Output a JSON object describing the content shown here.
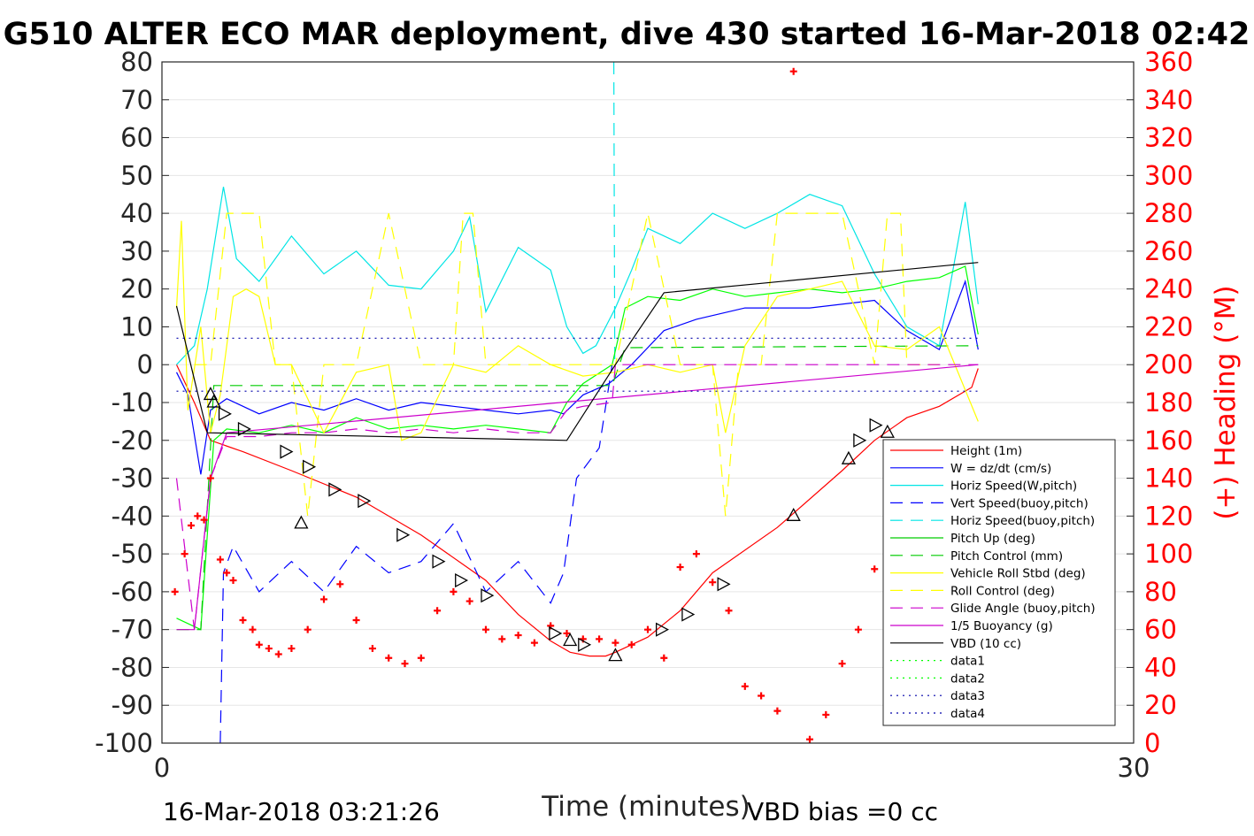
{
  "title": "G510 ALTER ECO MAR deployment, dive 430 started 16-Mar-2018 02:42",
  "footer": {
    "timestamp": "16-Mar-2018 03:21:26",
    "vbd_bias": "VBD bias =0 cc"
  },
  "chart_data": {
    "type": "line",
    "xlabel": "Time (minutes)",
    "ylabel_right": "(+) Heading (°M)",
    "xlim": [
      0,
      30
    ],
    "ylim": [
      -100,
      80
    ],
    "ylim_right": [
      0,
      360
    ],
    "x_ticks": [
      "0",
      "30"
    ],
    "y_ticks": [
      "80",
      "70",
      "60",
      "50",
      "40",
      "30",
      "20",
      "10",
      "0",
      "-10",
      "-20",
      "-30",
      "-40",
      "-50",
      "-60",
      "-70",
      "-80",
      "-90",
      "-100"
    ],
    "y_right_ticks": [
      "360",
      "340",
      "320",
      "300",
      "280",
      "260",
      "240",
      "220",
      "200",
      "180",
      "160",
      "140",
      "120",
      "100",
      "80",
      "60",
      "40",
      "20",
      "0"
    ],
    "grid": true,
    "legend_position": "bottom-right",
    "series": [
      {
        "name": "Height (1m)",
        "color": "#ff0000",
        "style": "solid",
        "x": [
          0.45,
          1.0,
          1.5,
          2.5,
          4.0,
          6.0,
          8.0,
          10.0,
          11.0,
          12.0,
          12.6,
          13.2,
          13.7,
          14.0,
          15.0,
          16.0,
          17.0,
          19.0,
          21.0,
          22.0,
          23.0,
          24.0,
          25.0,
          25.2
        ],
        "y": [
          0,
          -10,
          -20,
          -23,
          -28,
          -35,
          -45,
          -57,
          -66,
          -73,
          -76,
          -77,
          -77,
          -76,
          -72,
          -65,
          -55,
          -43,
          -28,
          -20,
          -14,
          -11,
          -6,
          -1
        ]
      },
      {
        "name": "W = dz/dt (cm/s)",
        "color": "#0000ff",
        "style": "solid",
        "x": [
          0.45,
          0.8,
          1.2,
          1.5,
          2.0,
          3.0,
          4.0,
          5.0,
          6.0,
          7.0,
          8.0,
          9.0,
          10.0,
          11.0,
          12.0,
          12.4,
          13.0,
          13.8,
          14.5,
          15.5,
          16.5,
          18.0,
          20.0,
          22.0,
          23.0,
          24.0,
          24.8,
          25.2
        ],
        "y": [
          -2,
          -8,
          -29,
          -12,
          -9,
          -13,
          -10,
          -12,
          -9,
          -12,
          -10,
          -11,
          -12,
          -13,
          -12,
          -13,
          -8,
          -5,
          0,
          9,
          12,
          15,
          15,
          17,
          9,
          4,
          22,
          4
        ]
      },
      {
        "name": "Horiz Speed(W,pitch)",
        "color": "#00e5e5",
        "style": "solid",
        "x": [
          0.45,
          1.0,
          1.4,
          1.9,
          2.3,
          3.0,
          4.0,
          5.0,
          6.0,
          7.0,
          8.0,
          9.0,
          9.5,
          10.0,
          11.0,
          12.0,
          12.5,
          13.0,
          13.4,
          14.0,
          14.5,
          15.0,
          16.0,
          17.0,
          18.0,
          19.0,
          20.0,
          21.0,
          22.0,
          23.0,
          24.0,
          24.8,
          25.2
        ],
        "y": [
          0,
          5,
          20,
          47,
          28,
          22,
          34,
          24,
          30,
          21,
          20,
          30,
          39,
          14,
          31,
          25,
          10,
          3,
          5,
          15,
          25,
          36,
          32,
          40,
          36,
          40,
          45,
          42,
          24,
          10,
          5,
          43,
          16
        ]
      },
      {
        "name": "Vert Speed(buoy,pitch)",
        "color": "#0000ff",
        "style": "dash",
        "x": [
          1.8,
          1.9,
          2.2,
          3.0,
          4.0,
          5.0,
          6.0,
          7.0,
          8.0,
          9.0,
          10.0,
          11.0,
          12.0,
          12.4,
          12.8,
          13.5,
          13.9
        ],
        "y": [
          -100,
          -55,
          -48,
          -60,
          -52,
          -60,
          -48,
          -55,
          -52,
          -42,
          -60,
          -52,
          -63,
          -55,
          -30,
          -22,
          0
        ]
      },
      {
        "name": "Horiz Speed(buoy,pitch)",
        "color": "#00e5e5",
        "style": "dash",
        "x": [
          13.95,
          13.98,
          14.02
        ],
        "y": [
          80,
          0,
          0
        ]
      },
      {
        "name": "Pitch Up (deg)",
        "color": "#00ff00",
        "style": "solid",
        "x": [
          0.45,
          1.2,
          1.6,
          2.0,
          3.0,
          4.0,
          5.0,
          6.0,
          7.0,
          8.0,
          9.0,
          10.0,
          11.0,
          12.0,
          12.5,
          13.0,
          13.9,
          14.3,
          15.0,
          16.0,
          17.0,
          18.0,
          19.0,
          20.0,
          21.0,
          22.0,
          23.0,
          24.0,
          24.8,
          25.2
        ],
        "y": [
          -67,
          -70,
          -20,
          -17,
          -18,
          -16,
          -18,
          -14,
          -17,
          -16,
          -17,
          -16,
          -17,
          -18,
          -10,
          -5,
          0,
          15,
          18,
          17,
          20,
          18,
          19,
          20,
          19,
          20,
          22,
          23,
          26,
          8
        ]
      },
      {
        "name": "Pitch Control (mm)",
        "color": "#00cc00",
        "style": "dash",
        "x": [
          0.45,
          1.2,
          1.6,
          12.5,
          13.9,
          14.3,
          25.2
        ],
        "y": [
          -70,
          -70,
          -5.5,
          -5.5,
          -5.5,
          4.5,
          5
        ]
      },
      {
        "name": "Vehicle Roll Stbd (deg)",
        "color": "#ffff00",
        "style": "solid",
        "x": [
          0.45,
          0.6,
          0.8,
          1.2,
          1.5,
          1.8,
          2.2,
          2.6,
          3.0,
          3.5,
          4.0,
          5.0,
          6.0,
          7.0,
          7.4,
          8.0,
          9.0,
          10.0,
          11.0,
          12.0,
          13.0,
          14.0,
          15.0,
          16.0,
          17.0,
          17.4,
          18.0,
          19.0,
          20.0,
          21.0,
          22.0,
          23.0,
          24.0,
          25.2
        ],
        "y": [
          15,
          38,
          -12,
          10,
          -18,
          -8,
          18,
          20,
          18,
          0,
          0,
          -18,
          -2,
          0,
          -20,
          -18,
          0,
          -2,
          5,
          0,
          -3,
          -2,
          0,
          -2,
          0,
          -18,
          5,
          18,
          20,
          22,
          5,
          4,
          10,
          -15
        ]
      },
      {
        "name": "Roll Control (deg)",
        "color": "#ffff00",
        "style": "dash",
        "x": [
          1.0,
          1.5,
          2.0,
          2.5,
          3.0,
          3.5,
          4.0,
          4.5,
          5.0,
          6.0,
          7.0,
          8.0,
          9.0,
          9.3,
          9.6,
          10.0,
          11.0,
          12.0,
          14.0,
          15.0,
          16.0,
          17.0,
          17.4,
          17.8,
          18.5,
          19.0,
          20.0,
          21.0,
          22.0,
          22.4,
          22.8,
          23.0,
          24.0
        ],
        "y": [
          0,
          0,
          40,
          40,
          40,
          0,
          0,
          -40,
          0,
          0,
          40,
          0,
          0,
          40,
          40,
          0,
          0,
          0,
          0,
          40,
          0,
          0,
          -40,
          0,
          0,
          40,
          40,
          40,
          0,
          40,
          40,
          0,
          0
        ]
      },
      {
        "name": "Glide Angle (buoy,pitch)",
        "color": "#cc00cc",
        "style": "dash",
        "x": [
          0.45,
          1.0,
          1.5,
          2.0,
          3.0,
          4.0,
          5.0,
          6.0,
          7.0,
          8.0,
          9.0,
          10.0,
          11.0,
          12.0,
          12.5,
          13.0,
          13.9,
          14.0,
          25.2
        ],
        "y": [
          -30,
          -70,
          -30,
          -19,
          -19,
          -18,
          -18,
          -17,
          -18,
          -17,
          -18,
          -17,
          -18,
          -18,
          -12,
          -11,
          -10,
          0,
          0
        ]
      },
      {
        "name": "1/5 Buoyancy (g)",
        "color": "#cc00cc",
        "style": "solid",
        "x": [
          0.45,
          1.0,
          1.5,
          2.0,
          25.2
        ],
        "y": [
          -70,
          -70,
          -30,
          -18,
          0
        ]
      },
      {
        "name": "VBD (10 cc)",
        "color": "#000000",
        "style": "solid",
        "x": [
          0.45,
          1.4,
          12.5,
          14.0,
          15.5,
          25.2
        ],
        "y": [
          15.5,
          -18,
          -20,
          0,
          19,
          27
        ]
      },
      {
        "name": "data1",
        "color": "#00ff00",
        "style": "dot",
        "x": [],
        "y": []
      },
      {
        "name": "data2",
        "color": "#00ff00",
        "style": "dot",
        "x": [],
        "y": []
      },
      {
        "name": "data3",
        "color": "#0000aa",
        "style": "dot",
        "x": [
          0.45,
          25.2
        ],
        "y": [
          7,
          7
        ]
      },
      {
        "name": "data4",
        "color": "#0000aa",
        "style": "dot",
        "x": [
          0.45,
          25.2
        ],
        "y": [
          -7,
          -7
        ]
      }
    ],
    "heading_series": {
      "color": "#ff0000",
      "marker": "+",
      "axis": "right",
      "x": [
        0.4,
        0.7,
        0.9,
        1.1,
        1.3,
        1.5,
        1.8,
        2.0,
        2.2,
        2.5,
        2.8,
        3.0,
        3.3,
        3.6,
        4.0,
        4.5,
        5.0,
        5.5,
        6.0,
        6.5,
        7.0,
        7.5,
        8.0,
        8.5,
        9.0,
        9.5,
        10.0,
        10.5,
        11.0,
        11.5,
        12.0,
        12.5,
        13.0,
        13.5,
        14.0,
        14.5,
        15.0,
        15.5,
        16.0,
        16.5,
        17.0,
        17.5,
        18.0,
        18.5,
        19.0,
        19.5,
        20.0,
        20.5,
        21.0,
        21.5,
        22.0,
        22.5,
        23.0
      ],
      "y": [
        80,
        100,
        115,
        120,
        118,
        140,
        97,
        90,
        86,
        65,
        60,
        52,
        50,
        47,
        50,
        60,
        76,
        84,
        65,
        50,
        45,
        42,
        45,
        70,
        80,
        75,
        60,
        55,
        57,
        53,
        62,
        58,
        55,
        55,
        53,
        52,
        60,
        45,
        93,
        100,
        85,
        70,
        30,
        25,
        17,
        355,
        2,
        15,
        42,
        60,
        92,
        55,
        35
      ]
    },
    "markers": {
      "up_triangles": {
        "x": [
          1.5,
          1.6,
          4.3,
          12.6,
          14.0,
          19.5,
          21.2,
          22.4
        ],
        "y": [
          -8,
          -10,
          -42,
          -73,
          -77,
          -40,
          -25,
          -18
        ]
      },
      "right_triangles": {
        "x": [
          1.9,
          2.5,
          3.8,
          4.5,
          5.3,
          6.2,
          7.4,
          8.5,
          9.2,
          10.0,
          12.1,
          13.0,
          15.4,
          16.2,
          17.3,
          21.5,
          22.0
        ],
        "y": [
          -13,
          -17,
          -23,
          -27,
          -33,
          -36,
          -45,
          -52,
          -57,
          -61,
          -71,
          -74,
          -70,
          -66,
          -58,
          -20,
          -16
        ]
      }
    }
  },
  "legend": [
    {
      "label": "Height (1m)",
      "color": "#ff0000",
      "style": "solid"
    },
    {
      "label": "W = dz/dt (cm/s)",
      "color": "#0000ff",
      "style": "solid"
    },
    {
      "label": "Horiz Speed(W,pitch)",
      "color": "#00e5e5",
      "style": "solid"
    },
    {
      "label": "Vert Speed(buoy,pitch)",
      "color": "#0000ff",
      "style": "dash"
    },
    {
      "label": "Horiz Speed(buoy,pitch)",
      "color": "#00e5e5",
      "style": "dash"
    },
    {
      "label": "Pitch Up (deg)",
      "color": "#00cc00",
      "style": "solid"
    },
    {
      "label": "Pitch Control (mm)",
      "color": "#00cc00",
      "style": "dash"
    },
    {
      "label": "Vehicle Roll Stbd (deg)",
      "color": "#ffff00",
      "style": "solid"
    },
    {
      "label": "Roll Control (deg)",
      "color": "#ffff00",
      "style": "dash"
    },
    {
      "label": "Glide Angle (buoy,pitch)",
      "color": "#cc00cc",
      "style": "dash"
    },
    {
      "label": "1/5 Buoyancy (g)",
      "color": "#cc00cc",
      "style": "solid"
    },
    {
      "label": "VBD (10 cc)",
      "color": "#000000",
      "style": "solid"
    },
    {
      "label": "data1",
      "color": "#00ff00",
      "style": "dot"
    },
    {
      "label": "data2",
      "color": "#00ff00",
      "style": "dot"
    },
    {
      "label": "data3",
      "color": "#0000aa",
      "style": "dot"
    },
    {
      "label": "data4",
      "color": "#0000aa",
      "style": "dot"
    }
  ]
}
